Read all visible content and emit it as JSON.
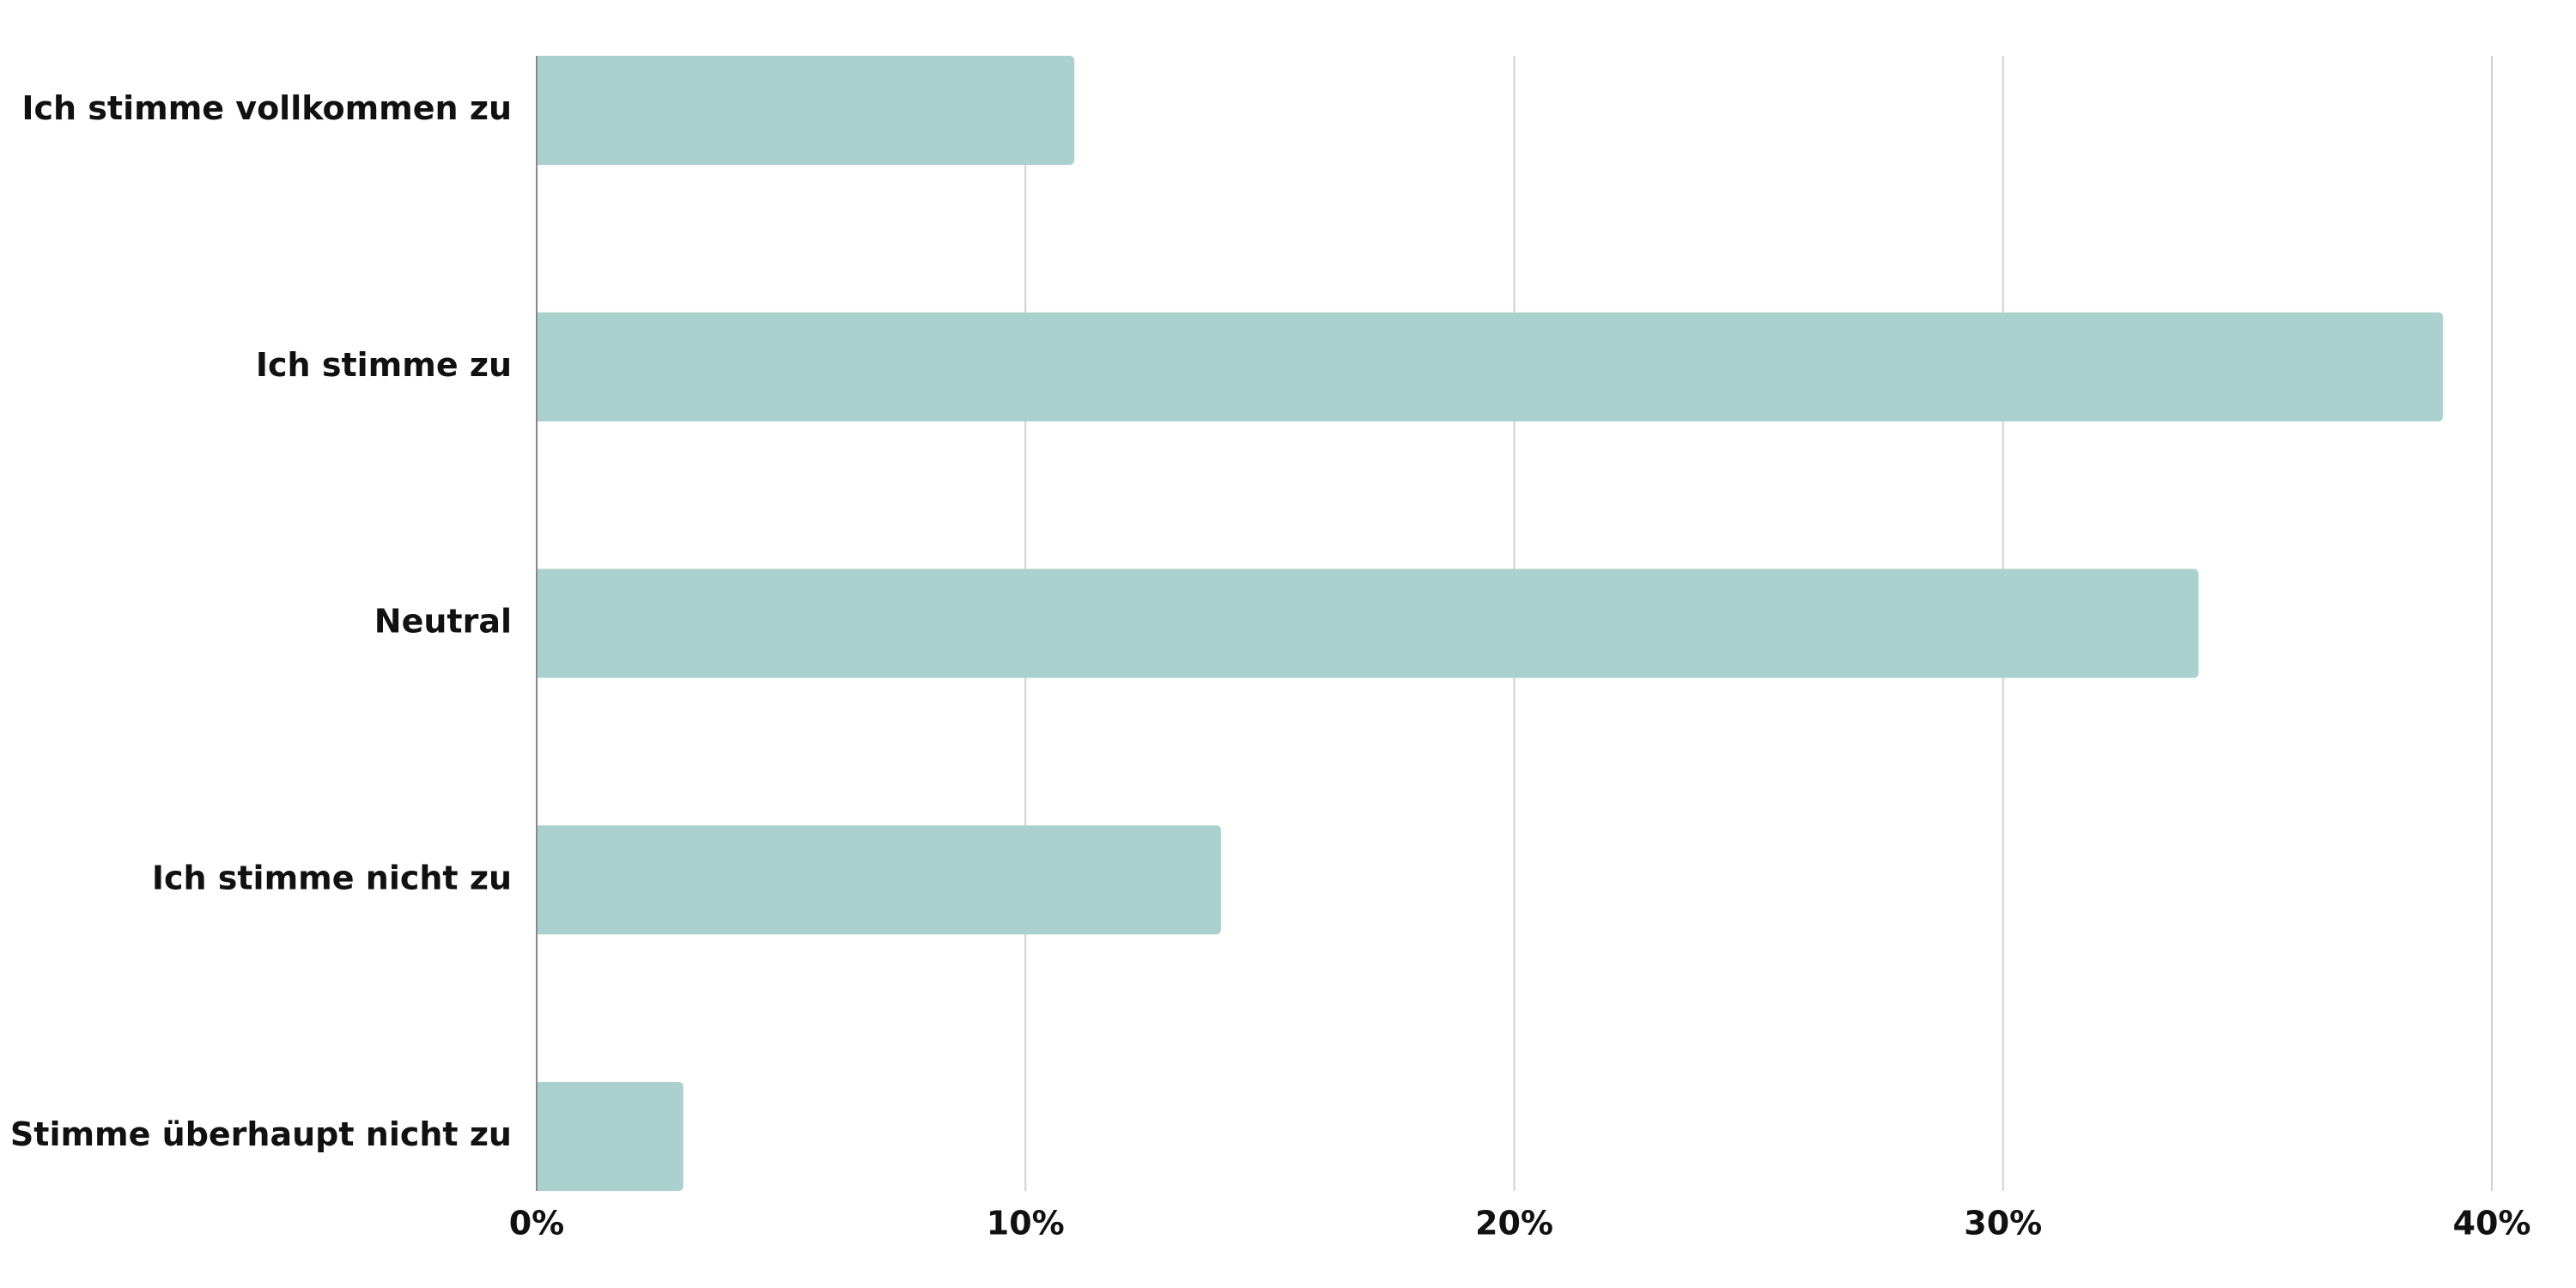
{
  "chart_data": {
    "type": "bar",
    "orientation": "horizontal",
    "categories": [
      "Ich stimme vollkommen zu",
      "Ich stimme zu",
      "Neutral",
      "Ich stimme nicht zu",
      "Stimme überhaupt nicht zu"
    ],
    "values": [
      11,
      39,
      34,
      14,
      3
    ],
    "color": "#abd1ce",
    "xlim": [
      0,
      40
    ],
    "xticks": [
      {
        "value": 0,
        "label": "0%"
      },
      {
        "value": 10,
        "label": "10%"
      },
      {
        "value": 20,
        "label": "20%"
      },
      {
        "value": 30,
        "label": "30%"
      },
      {
        "value": 40,
        "label": "40%"
      }
    ],
    "grid": true
  }
}
